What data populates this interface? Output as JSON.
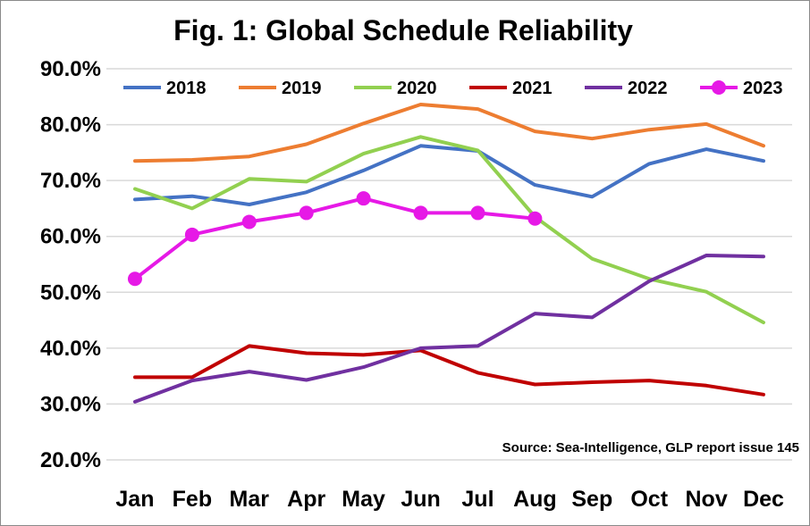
{
  "chart_data": {
    "type": "line",
    "title": "Fig. 1: Global Schedule Reliability",
    "annotation": "Source: Sea-Intelligence, GLP report issue 145",
    "categories": [
      "Jan",
      "Feb",
      "Mar",
      "Apr",
      "May",
      "Jun",
      "Jul",
      "Aug",
      "Sep",
      "Oct",
      "Nov",
      "Dec"
    ],
    "ylim": [
      20,
      90
    ],
    "yticks": [
      20,
      30,
      40,
      50,
      60,
      70,
      80,
      90
    ],
    "ytick_labels": [
      "20.0%",
      "30.0%",
      "40.0%",
      "50.0%",
      "60.0%",
      "70.0%",
      "80.0%",
      "90.0%"
    ],
    "grid": "horizontal",
    "legend_position": "top",
    "series": [
      {
        "name": "2018",
        "color": "#4472c4",
        "markers": false,
        "values": [
          66.6,
          67.2,
          65.7,
          67.9,
          71.8,
          76.2,
          75.3,
          69.2,
          67.1,
          73.0,
          75.6,
          73.5
        ]
      },
      {
        "name": "2019",
        "color": "#ed7d31",
        "markers": false,
        "values": [
          73.5,
          73.7,
          74.3,
          76.5,
          80.2,
          83.6,
          82.8,
          78.8,
          77.5,
          79.1,
          80.1,
          76.2
        ]
      },
      {
        "name": "2020",
        "color": "#92d050",
        "markers": false,
        "values": [
          68.5,
          65.0,
          70.3,
          69.8,
          74.8,
          77.8,
          75.4,
          63.5,
          56.0,
          52.4,
          50.1,
          44.6
        ]
      },
      {
        "name": "2021",
        "color": "#c00000",
        "markers": false,
        "values": [
          34.8,
          34.8,
          40.4,
          39.1,
          38.8,
          39.6,
          35.6,
          33.5,
          33.9,
          34.2,
          33.3,
          31.7
        ]
      },
      {
        "name": "2022",
        "color": "#7030a0",
        "markers": false,
        "values": [
          30.4,
          34.2,
          35.8,
          34.3,
          36.6,
          40.0,
          40.4,
          46.2,
          45.5,
          52.0,
          56.6,
          56.4
        ]
      },
      {
        "name": "2023",
        "color": "#e619e6",
        "markers": true,
        "values": [
          52.4,
          60.3,
          62.6,
          64.2,
          66.8,
          64.2,
          64.2,
          63.2,
          null,
          null,
          null,
          null
        ]
      }
    ]
  }
}
